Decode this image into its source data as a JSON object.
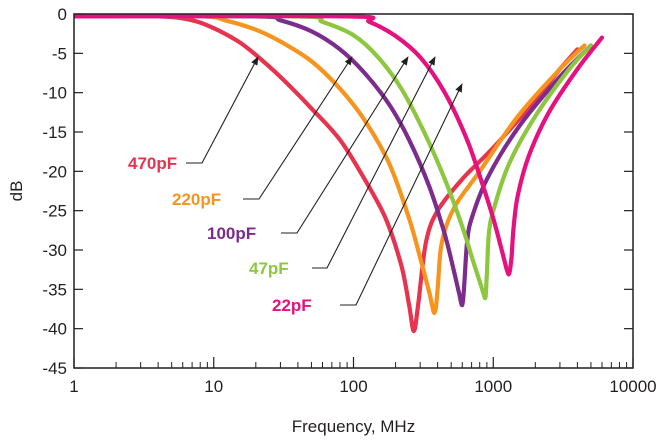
{
  "chart_data": {
    "type": "line",
    "title": "",
    "xlabel": "Frequency, MHz",
    "ylabel": "dB",
    "x_scale": "log",
    "xlim": [
      1,
      10000
    ],
    "ylim": [
      -45,
      0
    ],
    "x_ticks": [
      1,
      10,
      100,
      1000,
      10000
    ],
    "x_tick_labels": [
      "1",
      "10",
      "100",
      "1000",
      "10000"
    ],
    "y_ticks": [
      0,
      -5,
      -10,
      -15,
      -20,
      -25,
      -30,
      -35,
      -40,
      -45
    ],
    "y_tick_labels": [
      "0",
      "-5",
      "-10",
      "-15",
      "-20",
      "-25",
      "-30",
      "-35",
      "-40",
      "-45"
    ],
    "grid": false,
    "series": [
      {
        "name": "470pF",
        "color": "#e8334f",
        "x": [
          1,
          4,
          7,
          10,
          15,
          20,
          30,
          50,
          80,
          120,
          170,
          220,
          250,
          270,
          290,
          330,
          400,
          600,
          1000,
          2000,
          3000,
          4000
        ],
        "y": [
          -0.3,
          -0.3,
          -0.8,
          -1.8,
          -3.5,
          -5.2,
          -8,
          -12,
          -16,
          -21,
          -26,
          -32,
          -37,
          -40.3,
          -37,
          -29,
          -25,
          -21,
          -17,
          -11,
          -7,
          -4.5
        ]
      },
      {
        "name": "220pF",
        "color": "#f7941d",
        "x": [
          1,
          8,
          12,
          20,
          30,
          50,
          80,
          120,
          180,
          250,
          300,
          350,
          380,
          400,
          420,
          460,
          550,
          800,
          1500,
          3000,
          4500
        ],
        "y": [
          -0.3,
          -0.3,
          -0.8,
          -2,
          -3.5,
          -6,
          -9.5,
          -13.5,
          -19,
          -26,
          -31,
          -35.5,
          -38,
          -35,
          -30,
          -27,
          -24,
          -20,
          -13,
          -7,
          -4
        ]
      },
      {
        "name": "100pF",
        "color": "#7b2c8c",
        "x": [
          1,
          20,
          30,
          50,
          80,
          120,
          180,
          250,
          350,
          450,
          520,
          570,
          600,
          620,
          650,
          700,
          900,
          1500,
          3000,
          5000
        ],
        "y": [
          -0.3,
          -0.3,
          -0.8,
          -2.2,
          -4.5,
          -7.5,
          -11.5,
          -16,
          -22,
          -28,
          -32.5,
          -35.5,
          -37,
          -34.5,
          -29,
          -26,
          -21,
          -14.5,
          -8,
          -4
        ]
      },
      {
        "name": "47pF",
        "color": "#8dc63f",
        "x": [
          1,
          40,
          60,
          100,
          150,
          220,
          320,
          450,
          600,
          720,
          800,
          850,
          880,
          900,
          930,
          1000,
          1300,
          2000,
          3500,
          5000
        ],
        "y": [
          -0.3,
          -0.3,
          -1,
          -2.7,
          -5.5,
          -9.5,
          -15,
          -21,
          -27,
          -31.5,
          -34,
          -35.5,
          -36,
          -33,
          -28,
          -25,
          -19,
          -13,
          -7,
          -4
        ]
      },
      {
        "name": "22pF",
        "color": "#e5117f",
        "x": [
          1,
          90,
          130,
          200,
          300,
          450,
          650,
          850,
          1000,
          1150,
          1250,
          1300,
          1350,
          1400,
          1500,
          1800,
          2500,
          4000,
          6000
        ],
        "y": [
          -0.3,
          -0.3,
          -1,
          -2.8,
          -5.5,
          -10,
          -16,
          -22,
          -26,
          -30,
          -32.5,
          -33,
          -31,
          -27,
          -23,
          -18,
          -12.5,
          -7,
          -3
        ]
      }
    ],
    "annotations": [
      {
        "text": "470pF",
        "points_to_series": "470pF"
      },
      {
        "text": "220pF",
        "points_to_series": "220pF"
      },
      {
        "text": "100pF",
        "points_to_series": "100pF"
      },
      {
        "text": "47pF",
        "points_to_series": "47pF"
      },
      {
        "text": "22pF",
        "points_to_series": "22pF"
      }
    ]
  }
}
